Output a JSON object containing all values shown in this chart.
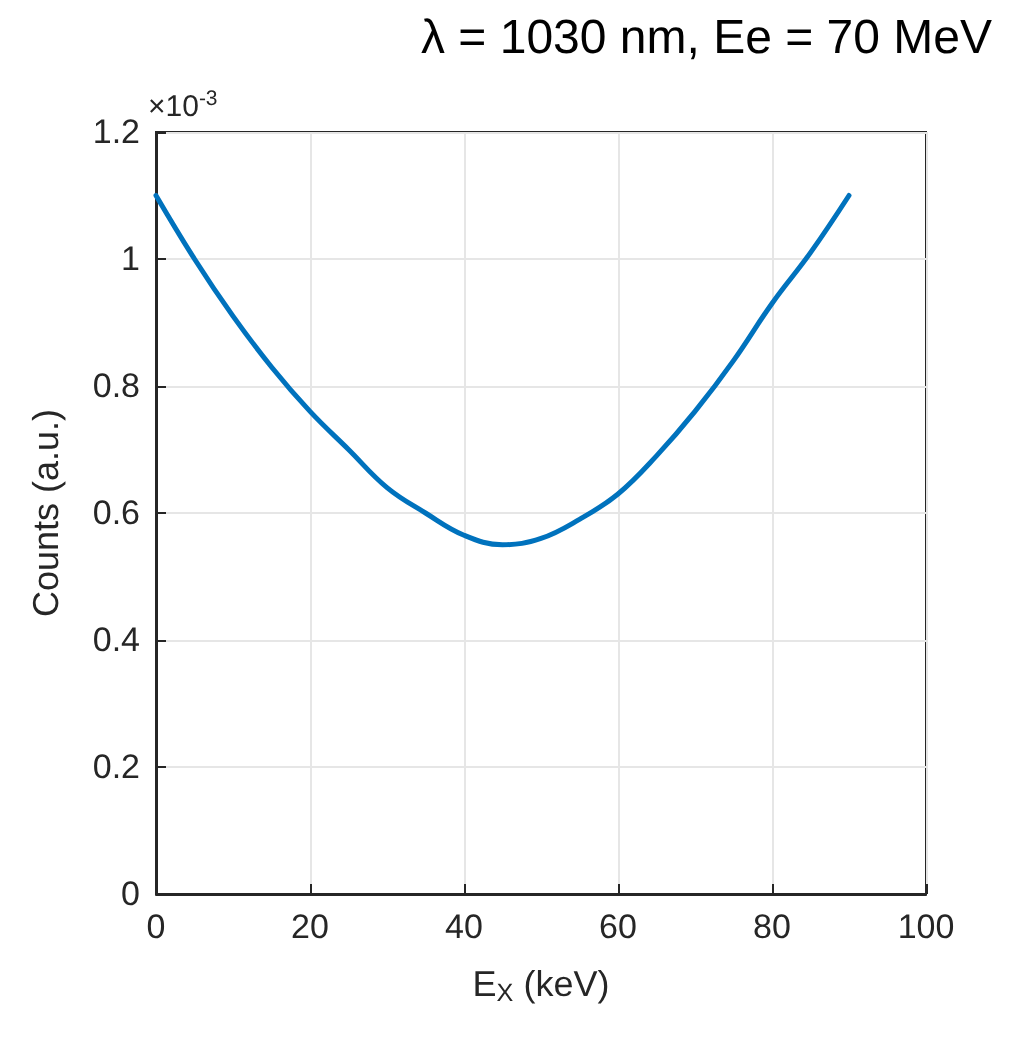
{
  "chart_data": {
    "type": "line",
    "title": "λ = 1030 nm, Ee = 70 MeV",
    "xlabel": "E$_{X}$ (keV)",
    "ylabel": "Counts (a.u.)",
    "annotations": [
      "×10$^{-3}$"
    ],
    "x": [
      0,
      5,
      10,
      15,
      20,
      25,
      30,
      35,
      40,
      45,
      50,
      55,
      60,
      65,
      70,
      75,
      80,
      85,
      90
    ],
    "series": [
      {
        "color": "#0072bd",
        "values": [
          1.1,
          1.0,
          0.91,
          0.83,
          0.76,
          0.7,
          0.64,
          0.6,
          0.565,
          0.55,
          0.56,
          0.59,
          0.63,
          0.69,
          0.76,
          0.84,
          0.93,
          1.01,
          1.1
        ]
      }
    ],
    "xlim": [
      0,
      100
    ],
    "xticks": [
      0,
      20,
      40,
      60,
      80,
      100
    ],
    "ylim": [
      0,
      1.2
    ],
    "yticks": [
      0,
      0.2,
      0.4,
      0.6,
      0.8,
      1,
      1.2
    ],
    "grid": true,
    "marker": "none",
    "line_style": "solid"
  }
}
